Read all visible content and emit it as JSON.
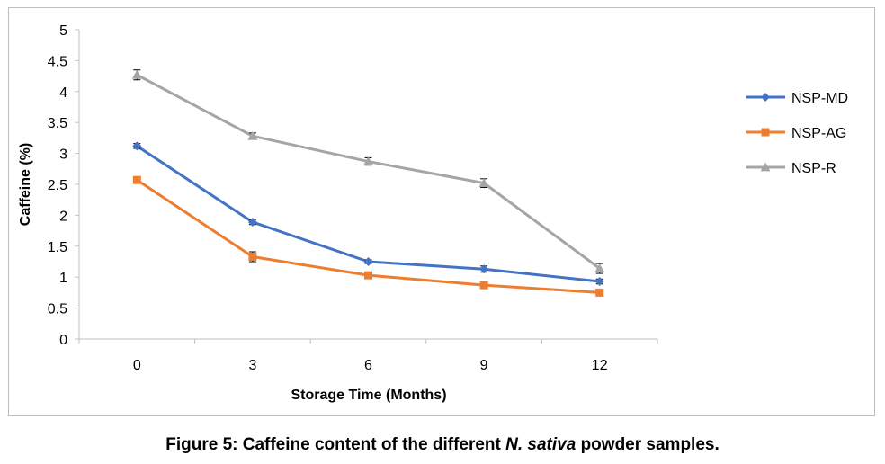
{
  "chart_data": {
    "type": "line",
    "title": "",
    "xlabel": "Storage Time (Months)",
    "ylabel": "Caffeine (%)",
    "categories": [
      "0",
      "3",
      "6",
      "9",
      "12"
    ],
    "ylim": [
      0,
      5
    ],
    "y_ticks": [
      "0",
      "0.5",
      "1",
      "1.5",
      "2",
      "2.5",
      "3",
      "3.5",
      "4",
      "4.5",
      "5"
    ],
    "grid": false,
    "legend_position": "right",
    "series": [
      {
        "name": "NSP-MD",
        "color": "#4472C4",
        "marker": "diamond",
        "values": [
          3.12,
          1.89,
          1.25,
          1.13,
          0.93
        ],
        "errors": [
          0.04,
          0.04,
          0.03,
          0.05,
          0.04
        ]
      },
      {
        "name": "NSP-AG",
        "color": "#ED7D31",
        "marker": "square",
        "values": [
          2.57,
          1.33,
          1.03,
          0.87,
          0.75
        ],
        "errors": [
          0.03,
          0.08,
          0.03,
          0.03,
          0.03
        ]
      },
      {
        "name": "NSP-R",
        "color": "#A5A5A5",
        "marker": "triangle",
        "values": [
          4.27,
          3.28,
          2.87,
          2.52,
          1.14
        ],
        "errors": [
          0.08,
          0.05,
          0.06,
          0.07,
          0.08
        ]
      }
    ]
  },
  "caption": {
    "prefix": "Figure 5: Caffeine content of the different ",
    "italic": "N. sativa",
    "suffix": " powder samples."
  }
}
